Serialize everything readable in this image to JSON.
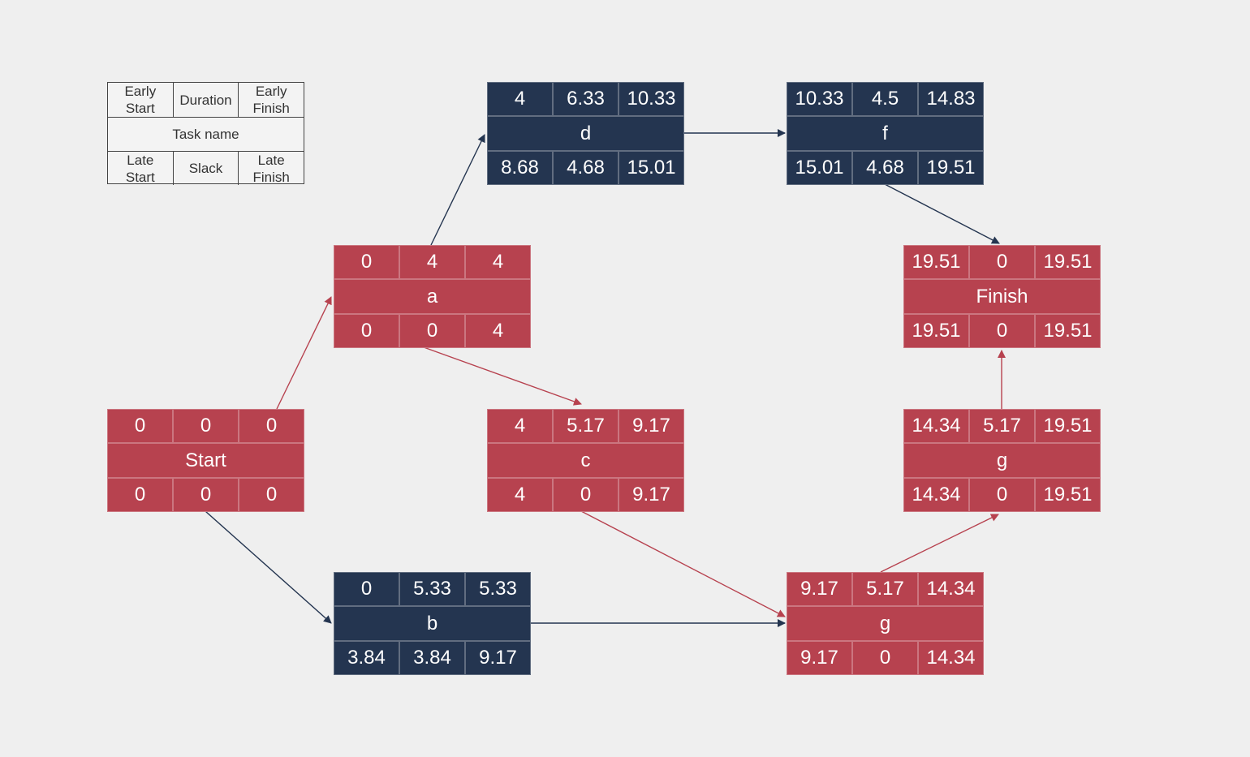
{
  "colors": {
    "critical": "#b7424f",
    "normal": "#243550",
    "background": "#efefef"
  },
  "legend": {
    "early_start": "Early\nStart",
    "duration": "Duration",
    "early_finish": "Early\nFinish",
    "task_name": "Task name",
    "late_start": "Late\nStart",
    "slack": "Slack",
    "late_finish": "Late\nFinish"
  },
  "nodes": [
    {
      "id": "start",
      "name": "Start",
      "es": "0",
      "dur": "0",
      "ef": "0",
      "ls": "0",
      "slack": "0",
      "lf": "0",
      "critical": true
    },
    {
      "id": "a",
      "name": "a",
      "es": "0",
      "dur": "4",
      "ef": "4",
      "ls": "0",
      "slack": "0",
      "lf": "4",
      "critical": true
    },
    {
      "id": "b",
      "name": "b",
      "es": "0",
      "dur": "5.33",
      "ef": "5.33",
      "ls": "3.84",
      "slack": "3.84",
      "lf": "9.17",
      "critical": false
    },
    {
      "id": "c",
      "name": "c",
      "es": "4",
      "dur": "5.17",
      "ef": "9.17",
      "ls": "4",
      "slack": "0",
      "lf": "9.17",
      "critical": true
    },
    {
      "id": "d",
      "name": "d",
      "es": "4",
      "dur": "6.33",
      "ef": "10.33",
      "ls": "8.68",
      "slack": "4.68",
      "lf": "15.01",
      "critical": false
    },
    {
      "id": "f",
      "name": "f",
      "es": "10.33",
      "dur": "4.5",
      "ef": "14.83",
      "ls": "15.01",
      "slack": "4.68",
      "lf": "19.51",
      "critical": false
    },
    {
      "id": "g1",
      "name": "g",
      "es": "9.17",
      "dur": "5.17",
      "ef": "14.34",
      "ls": "9.17",
      "slack": "0",
      "lf": "14.34",
      "critical": true
    },
    {
      "id": "g2",
      "name": "g",
      "es": "14.34",
      "dur": "5.17",
      "ef": "19.51",
      "ls": "14.34",
      "slack": "0",
      "lf": "19.51",
      "critical": true
    },
    {
      "id": "finish",
      "name": "Finish",
      "es": "19.51",
      "dur": "0",
      "ef": "19.51",
      "ls": "19.51",
      "slack": "0",
      "lf": "19.51",
      "critical": true
    }
  ],
  "edges": [
    {
      "from": "start",
      "to": "a",
      "critical": true
    },
    {
      "from": "start",
      "to": "b",
      "critical": false
    },
    {
      "from": "a",
      "to": "d",
      "critical": false
    },
    {
      "from": "a",
      "to": "c",
      "critical": true
    },
    {
      "from": "d",
      "to": "f",
      "critical": false
    },
    {
      "from": "f",
      "to": "finish",
      "critical": false
    },
    {
      "from": "c",
      "to": "g1",
      "critical": true
    },
    {
      "from": "b",
      "to": "g1",
      "critical": false
    },
    {
      "from": "g1",
      "to": "g2",
      "critical": true
    },
    {
      "from": "g2",
      "to": "finish",
      "critical": true
    }
  ]
}
